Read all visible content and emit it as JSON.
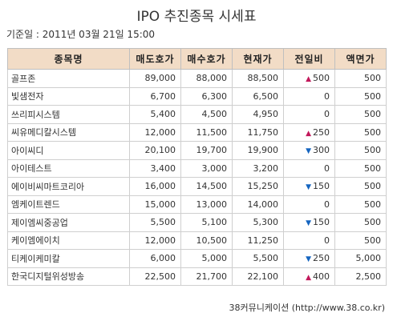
{
  "title": "IPO 추진종목 시세표",
  "base_date": "기준일 : 2011년 03월 21일 15:00",
  "columns": [
    "종목명",
    "매도호가",
    "매수호가",
    "현재가",
    "전일비",
    "액면가"
  ],
  "rows": [
    {
      "name": "골프존",
      "ask": "89,000",
      "bid": "88,000",
      "price": "88,500",
      "dir": "up",
      "change": "500",
      "par": "500"
    },
    {
      "name": "빛샘전자",
      "ask": "6,700",
      "bid": "6,300",
      "price": "6,500",
      "dir": "none",
      "change": "0",
      "par": "500"
    },
    {
      "name": "쓰리피시스템",
      "ask": "5,400",
      "bid": "4,500",
      "price": "4,950",
      "dir": "none",
      "change": "0",
      "par": "500"
    },
    {
      "name": "씨유메디칼시스템",
      "ask": "12,000",
      "bid": "11,500",
      "price": "11,750",
      "dir": "up",
      "change": "250",
      "par": "500"
    },
    {
      "name": "아이씨디",
      "ask": "20,100",
      "bid": "19,700",
      "price": "19,900",
      "dir": "down",
      "change": "300",
      "par": "500"
    },
    {
      "name": "아이테스트",
      "ask": "3,400",
      "bid": "3,000",
      "price": "3,200",
      "dir": "none",
      "change": "0",
      "par": "500"
    },
    {
      "name": "에이비씨마트코리아",
      "ask": "16,000",
      "bid": "14,500",
      "price": "15,250",
      "dir": "down",
      "change": "150",
      "par": "500"
    },
    {
      "name": "엠케이트렌드",
      "ask": "15,000",
      "bid": "13,000",
      "price": "14,000",
      "dir": "none",
      "change": "0",
      "par": "500"
    },
    {
      "name": "제이엠씨중공업",
      "ask": "5,500",
      "bid": "5,100",
      "price": "5,300",
      "dir": "down",
      "change": "150",
      "par": "500"
    },
    {
      "name": "케이엠에이치",
      "ask": "12,000",
      "bid": "10,500",
      "price": "11,250",
      "dir": "none",
      "change": "0",
      "par": "500"
    },
    {
      "name": "티케이케미칼",
      "ask": "6,000",
      "bid": "5,000",
      "price": "5,500",
      "dir": "down",
      "change": "250",
      "par": "5,000"
    },
    {
      "name": "한국디지털위성방송",
      "ask": "22,500",
      "bid": "21,700",
      "price": "22,100",
      "dir": "up",
      "change": "400",
      "par": "2,500"
    }
  ],
  "footer": "38커뮤니케이션 (http://www.38.co.kr)",
  "colors": {
    "header_bg": "#f2dcc6",
    "up": "#c2185b",
    "down": "#1565c0"
  }
}
